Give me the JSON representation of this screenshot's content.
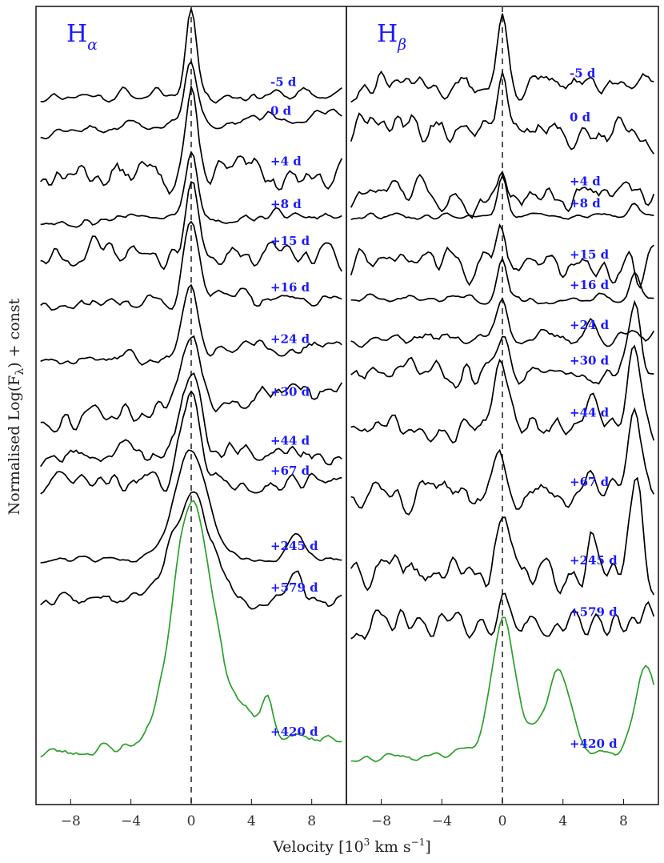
{
  "chart_data": {
    "type": "line",
    "xlabel": "Velocity [10",
    "xlabel_sup": "3",
    "xlabel_tail": " km s",
    "xlabel_sup2": "−1",
    "xlabel_end": "]",
    "ylabel": "Normalised Log(F",
    "ylabel_sub": "λ",
    "ylabel_end": ") + const",
    "xlim": [
      -10.3,
      10.3
    ],
    "xticks": [
      -8,
      -4,
      0,
      4,
      8
    ],
    "xtick_labels": [
      "−8",
      "−4",
      "0",
      "4",
      "8"
    ],
    "label_color": "#1a1aff",
    "line_color": "#000000",
    "late_color": "#2ca02c",
    "zero_line": "dashed",
    "panels": [
      {
        "title": "H",
        "title_sub": "α",
        "series": [
          {
            "label": "-5 d",
            "baseline": 0.889,
            "peak": 0.115,
            "width": 0.35,
            "noise": 0.01,
            "slope": 0.0,
            "seed": 11,
            "extra": []
          },
          {
            "label": "0 d",
            "baseline": 0.853,
            "peak": 0.08,
            "width": 0.4,
            "noise": 0.01,
            "slope": 0.01,
            "seed": 12,
            "extra": []
          },
          {
            "label": "+4 d",
            "baseline": 0.79,
            "peak": 0.09,
            "width": 0.4,
            "noise": 0.025,
            "slope": 0.0,
            "seed": 13,
            "extra": []
          },
          {
            "label": "+8 d",
            "baseline": 0.736,
            "peak": 0.083,
            "width": 0.4,
            "noise": 0.009,
            "slope": 0.005,
            "seed": 14,
            "extra": []
          },
          {
            "label": "+15 d",
            "baseline": 0.69,
            "peak": 0.073,
            "width": 0.45,
            "noise": 0.022,
            "slope": 0.0,
            "seed": 15,
            "extra": []
          },
          {
            "label": "+16 d",
            "baseline": 0.632,
            "peak": 0.095,
            "width": 0.45,
            "noise": 0.013,
            "slope": 0.005,
            "seed": 16,
            "extra": []
          },
          {
            "label": "+24 d",
            "baseline": 0.567,
            "peak": 0.08,
            "width": 0.5,
            "noise": 0.013,
            "slope": 0.01,
            "seed": 17,
            "extra": []
          },
          {
            "label": "+30 d",
            "baseline": 0.501,
            "peak": 0.09,
            "width": 0.55,
            "noise": 0.016,
            "slope": 0.02,
            "seed": 18,
            "extra": []
          },
          {
            "label": "+44 d",
            "baseline": 0.44,
            "peak": 0.105,
            "width": 0.6,
            "noise": 0.017,
            "slope": 0.0,
            "seed": 19,
            "extra": []
          },
          {
            "label": "+67 d",
            "baseline": 0.402,
            "peak": 0.105,
            "width": 0.7,
            "noise": 0.016,
            "slope": 0.0,
            "seed": 20,
            "extra": []
          },
          {
            "label": "+245 d",
            "baseline": 0.308,
            "peak": 0.135,
            "width": 1.1,
            "noise": 0.005,
            "slope": 0.0,
            "seed": 21,
            "extra": [
              {
                "x": 7.0,
                "a": 0.03,
                "w": 0.5
              }
            ]
          },
          {
            "label": "+579 d",
            "baseline": 0.256,
            "peak": 0.13,
            "width": 1.3,
            "noise": 0.012,
            "slope": 0.0,
            "seed": 22,
            "extra": [
              {
                "x": 7.0,
                "a": 0.03,
                "w": 0.4
              }
            ]
          },
          {
            "label": "+420 d",
            "baseline": 0.075,
            "peak": 0.255,
            "width": 1.2,
            "noise": 0.008,
            "slope": 0.01,
            "seed": 23,
            "late": true,
            "extra": [
              {
                "x": 5.0,
                "a": 0.04,
                "w": 0.35
              }
            ]
          }
        ]
      },
      {
        "title": "H",
        "title_sub": "β",
        "series": [
          {
            "label": "-5 d",
            "baseline": 0.9,
            "peak": 0.09,
            "width": 0.3,
            "noise": 0.02,
            "slope": 0.0,
            "seed": 31,
            "extra": []
          },
          {
            "label": "0 d",
            "baseline": 0.845,
            "peak": 0.07,
            "width": 0.3,
            "noise": 0.025,
            "slope": -0.005,
            "seed": 32,
            "extra": []
          },
          {
            "label": "+4 d",
            "baseline": 0.765,
            "peak": 0.05,
            "width": 0.3,
            "noise": 0.03,
            "slope": 0.0,
            "seed": 33,
            "extra": [
              {
                "x": 4.8,
                "a": 0.02,
                "w": 0.2
              }
            ]
          },
          {
            "label": "+8 d",
            "baseline": 0.737,
            "peak": 0.05,
            "width": 0.3,
            "noise": 0.004,
            "slope": 0.0,
            "seed": 34,
            "extra": [
              {
                "x": 8.7,
                "a": 0.02,
                "w": 0.3
              }
            ]
          },
          {
            "label": "+15 d",
            "baseline": 0.673,
            "peak": 0.06,
            "width": 0.3,
            "noise": 0.028,
            "slope": 0.0,
            "seed": 35,
            "extra": []
          },
          {
            "label": "+16 d",
            "baseline": 0.635,
            "peak": 0.05,
            "width": 0.3,
            "noise": 0.008,
            "slope": 0.0,
            "seed": 36,
            "extra": [
              {
                "x": 8.7,
                "a": 0.03,
                "w": 0.3
              }
            ]
          },
          {
            "label": "+24 d",
            "baseline": 0.585,
            "peak": 0.05,
            "width": 0.35,
            "noise": 0.012,
            "slope": 0.0,
            "seed": 37,
            "extra": [
              {
                "x": 5.8,
                "a": 0.02,
                "w": 0.3
              }
            ]
          },
          {
            "label": "+30 d",
            "baseline": 0.54,
            "peak": 0.06,
            "width": 0.35,
            "noise": 0.02,
            "slope": 0.0,
            "seed": 38,
            "extra": [
              {
                "x": 8.7,
                "a": 0.08,
                "w": 0.4
              }
            ]
          },
          {
            "label": "+44 d",
            "baseline": 0.475,
            "peak": 0.07,
            "width": 0.4,
            "noise": 0.025,
            "slope": 0.0,
            "seed": 39,
            "extra": [
              {
                "x": 8.7,
                "a": 0.1,
                "w": 0.4
              },
              {
                "x": 5.8,
                "a": 0.03,
                "w": 0.3
              }
            ]
          },
          {
            "label": "+67 d",
            "baseline": 0.388,
            "peak": 0.06,
            "width": 0.4,
            "noise": 0.025,
            "slope": 0.0,
            "seed": 40,
            "extra": [
              {
                "x": 8.7,
                "a": 0.12,
                "w": 0.4
              },
              {
                "x": 5.8,
                "a": 0.04,
                "w": 0.3
              }
            ]
          },
          {
            "label": "+245 d",
            "baseline": 0.29,
            "peak": 0.06,
            "width": 0.4,
            "noise": 0.03,
            "slope": 0.0,
            "seed": 41,
            "extra": [
              {
                "x": 8.9,
                "a": 0.12,
                "w": 0.4
              },
              {
                "x": 5.9,
                "a": 0.06,
                "w": 0.3
              }
            ]
          },
          {
            "label": "+579 d",
            "baseline": 0.225,
            "peak": 0.03,
            "width": 0.4,
            "noise": 0.02,
            "slope": 0.0,
            "seed": 42,
            "extra": [
              {
                "x": 9.6,
                "a": 0.04,
                "w": 0.3
              }
            ]
          },
          {
            "label": "+420 d",
            "baseline": 0.06,
            "peak": 0.145,
            "width": 0.7,
            "noise": 0.008,
            "slope": 0.0,
            "seed": 43,
            "late": true,
            "extra": [
              {
                "x": 3.8,
                "a": 0.09,
                "w": 0.7
              },
              {
                "x": 9.5,
                "a": 0.11,
                "w": 0.8
              }
            ]
          }
        ]
      }
    ]
  }
}
